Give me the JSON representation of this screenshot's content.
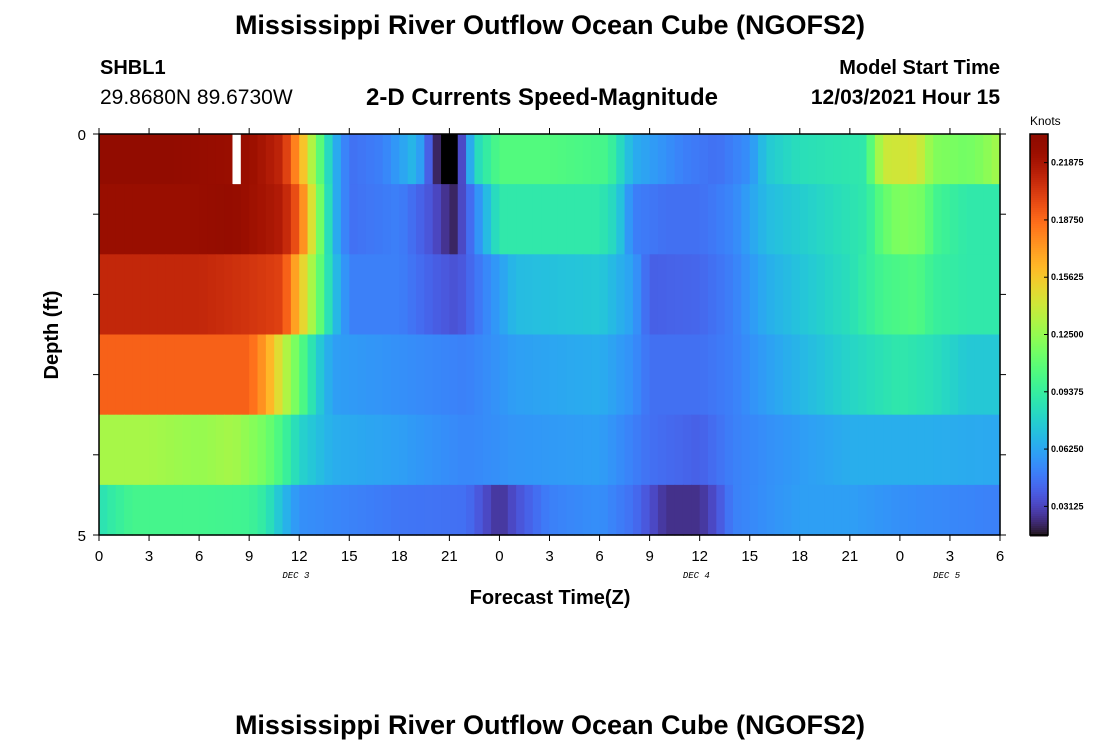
{
  "header": {
    "title": "Mississippi River Outflow Ocean Cube (NGOFS2)",
    "station": "SHBL1",
    "coordinates": "29.8680N  89.6730W",
    "subtitle": "2-D Currents Speed-Magnitude",
    "model_start_label": "Model Start Time",
    "model_start_value": "12/03/2021 Hour 15"
  },
  "footer": {
    "title": "Mississippi River Outflow Ocean Cube (NGOFS2)"
  },
  "chart_data": {
    "type": "heatmap",
    "xlabel": "Forecast Time(Z)",
    "ylabel": "Depth (ft)",
    "x_range_hours": [
      0,
      54
    ],
    "y_range_ft": [
      0,
      5
    ],
    "x_tick_labels": [
      "0",
      "3",
      "6",
      "9",
      "12",
      "15",
      "18",
      "21",
      "0",
      "3",
      "6",
      "9",
      "12",
      "15",
      "18",
      "21",
      "0",
      "3",
      "6"
    ],
    "y_tick_labels": [
      "0",
      "5"
    ],
    "date_labels": [
      {
        "text": "DEC 3",
        "hour": 11.8
      },
      {
        "text": "DEC 4",
        "hour": 35.8
      },
      {
        "text": "DEC 5",
        "hour": 50.8
      }
    ],
    "colorbar": {
      "unit": "Knots",
      "min": 0.015625,
      "max": 0.234375,
      "labels": [
        "0.21875",
        "0.18750",
        "0.15625",
        "0.12500",
        "0.09375",
        "0.06250",
        "0.03125"
      ],
      "label_values": [
        0.21875,
        0.1875,
        0.15625,
        0.125,
        0.09375,
        0.0625,
        0.03125
      ],
      "scale": "turbo"
    },
    "depth_layers_ft": [
      0.25,
      1.0,
      2.0,
      3.0,
      4.0,
      4.75
    ],
    "speed_knots": [
      [
        [
          0,
          0.23
        ],
        [
          4,
          0.23
        ],
        [
          8,
          0.225
        ],
        [
          8.5,
          -1
        ],
        [
          9,
          0.225
        ],
        [
          11,
          0.21
        ],
        [
          12,
          0.17
        ],
        [
          13,
          0.12
        ],
        [
          14,
          0.07
        ],
        [
          15,
          0.045
        ],
        [
          17,
          0.05
        ],
        [
          19,
          0.07
        ],
        [
          20,
          0.03
        ],
        [
          20.7,
          0.005
        ],
        [
          21.2,
          0.005
        ],
        [
          21.7,
          0.03
        ],
        [
          22.5,
          0.08
        ],
        [
          24,
          0.105
        ],
        [
          27,
          0.105
        ],
        [
          30.5,
          0.1
        ],
        [
          32,
          0.065
        ],
        [
          35,
          0.05
        ],
        [
          37,
          0.045
        ],
        [
          39,
          0.055
        ],
        [
          40,
          0.075
        ],
        [
          42,
          0.085
        ],
        [
          46,
          0.09
        ],
        [
          46.3,
          0.11
        ],
        [
          47,
          0.14
        ],
        [
          49,
          0.145
        ],
        [
          50,
          0.12
        ],
        [
          52,
          0.115
        ],
        [
          53,
          0.12
        ],
        [
          54,
          0.13
        ]
      ],
      [
        [
          0,
          0.225
        ],
        [
          5,
          0.225
        ],
        [
          8,
          0.228
        ],
        [
          11,
          0.215
        ],
        [
          12,
          0.19
        ],
        [
          13,
          0.13
        ],
        [
          14,
          0.07
        ],
        [
          15,
          0.045
        ],
        [
          18,
          0.05
        ],
        [
          20,
          0.035
        ],
        [
          21.2,
          0.02
        ],
        [
          22.5,
          0.05
        ],
        [
          24,
          0.09
        ],
        [
          30,
          0.09
        ],
        [
          31,
          0.08
        ],
        [
          32,
          0.05
        ],
        [
          34,
          0.045
        ],
        [
          36,
          0.045
        ],
        [
          38,
          0.052
        ],
        [
          40,
          0.07
        ],
        [
          46,
          0.09
        ],
        [
          47,
          0.11
        ],
        [
          48,
          0.12
        ],
        [
          49.5,
          0.115
        ],
        [
          50,
          0.1
        ],
        [
          52,
          0.09
        ],
        [
          54,
          0.09
        ]
      ],
      [
        [
          0,
          0.21
        ],
        [
          6,
          0.21
        ],
        [
          9,
          0.205
        ],
        [
          11,
          0.2
        ],
        [
          12,
          0.16
        ],
        [
          13,
          0.12
        ],
        [
          14,
          0.075
        ],
        [
          15,
          0.05
        ],
        [
          18,
          0.05
        ],
        [
          20,
          0.04
        ],
        [
          21.5,
          0.035
        ],
        [
          23,
          0.05
        ],
        [
          25,
          0.07
        ],
        [
          30,
          0.075
        ],
        [
          32,
          0.06
        ],
        [
          33,
          0.04
        ],
        [
          36,
          0.042
        ],
        [
          38,
          0.05
        ],
        [
          40,
          0.065
        ],
        [
          45,
          0.085
        ],
        [
          47,
          0.1
        ],
        [
          49,
          0.105
        ],
        [
          50,
          0.095
        ],
        [
          52,
          0.09
        ],
        [
          54,
          0.09
        ]
      ],
      [
        [
          0,
          0.19
        ],
        [
          5,
          0.19
        ],
        [
          9,
          0.19
        ],
        [
          10,
          0.17
        ],
        [
          11,
          0.14
        ],
        [
          12,
          0.11
        ],
        [
          13,
          0.08
        ],
        [
          14,
          0.06
        ],
        [
          18,
          0.055
        ],
        [
          22,
          0.05
        ],
        [
          25,
          0.06
        ],
        [
          30,
          0.065
        ],
        [
          32,
          0.055
        ],
        [
          33,
          0.045
        ],
        [
          36,
          0.045
        ],
        [
          38,
          0.05
        ],
        [
          40,
          0.06
        ],
        [
          45,
          0.08
        ],
        [
          48,
          0.09
        ],
        [
          50,
          0.085
        ],
        [
          52,
          0.075
        ],
        [
          54,
          0.075
        ]
      ],
      [
        [
          0,
          0.13
        ],
        [
          3,
          0.13
        ],
        [
          6,
          0.125
        ],
        [
          8,
          0.13
        ],
        [
          10,
          0.115
        ],
        [
          11,
          0.1
        ],
        [
          12,
          0.08
        ],
        [
          14,
          0.065
        ],
        [
          18,
          0.06
        ],
        [
          22,
          0.052
        ],
        [
          25,
          0.057
        ],
        [
          30,
          0.06
        ],
        [
          33,
          0.045
        ],
        [
          36,
          0.04
        ],
        [
          38,
          0.05
        ],
        [
          41,
          0.057
        ],
        [
          45,
          0.065
        ],
        [
          50,
          0.065
        ],
        [
          54,
          0.063
        ]
      ],
      [
        [
          0,
          0.085
        ],
        [
          0.5,
          0.09
        ],
        [
          2,
          0.1
        ],
        [
          6,
          0.1
        ],
        [
          9,
          0.098
        ],
        [
          10,
          0.09
        ],
        [
          11,
          0.07
        ],
        [
          12,
          0.055
        ],
        [
          18,
          0.047
        ],
        [
          22,
          0.045
        ],
        [
          24,
          0.025
        ],
        [
          25,
          0.035
        ],
        [
          27,
          0.05
        ],
        [
          30,
          0.055
        ],
        [
          32,
          0.045
        ],
        [
          33,
          0.035
        ],
        [
          34,
          0.025
        ],
        [
          36,
          0.025
        ],
        [
          37,
          0.035
        ],
        [
          38,
          0.05
        ],
        [
          42,
          0.06
        ],
        [
          45,
          0.06
        ],
        [
          48,
          0.055
        ],
        [
          54,
          0.05
        ]
      ]
    ]
  }
}
